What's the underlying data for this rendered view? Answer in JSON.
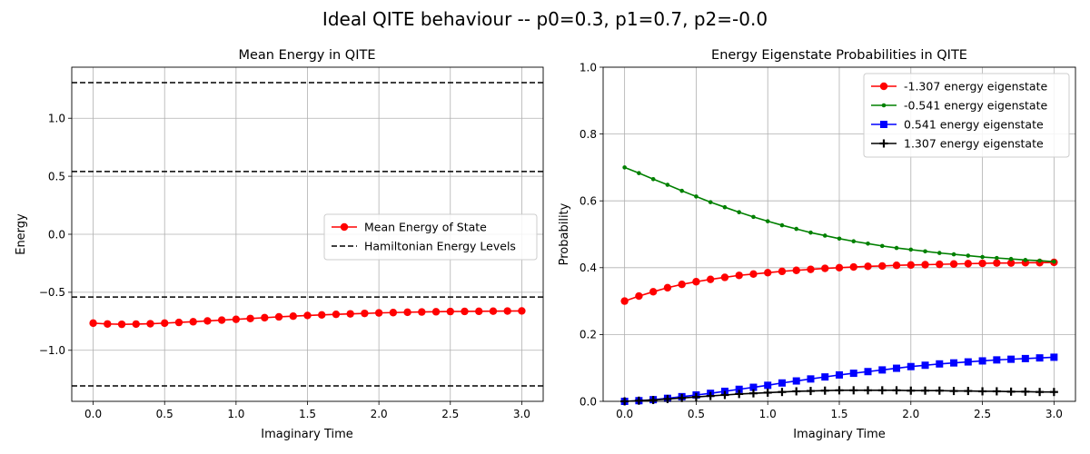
{
  "figure_title": "Ideal QITE behaviour -- p0=0.3, p1=0.7, p2=-0.0",
  "chart_data": [
    {
      "type": "line",
      "title": "Mean Energy in QITE",
      "xlabel": "Imaginary Time",
      "ylabel": "Energy",
      "xlim": [
        -0.15,
        3.15
      ],
      "ylim": [
        -1.44,
        1.44
      ],
      "xticks": [
        "0.0",
        "0.5",
        "1.0",
        "1.5",
        "2.0",
        "2.5",
        "3.0"
      ],
      "yticks": [
        "−1.0",
        "−0.5",
        "0.0",
        "0.5",
        "1.0"
      ],
      "grid": true,
      "legend_position": "center-right",
      "x": [
        0.0,
        0.1,
        0.2,
        0.3,
        0.4,
        0.5,
        0.6,
        0.7,
        0.8,
        0.9,
        1.0,
        1.1,
        1.2,
        1.3,
        1.4,
        1.5,
        1.6,
        1.7,
        1.8,
        1.9,
        2.0,
        2.1,
        2.2,
        2.3,
        2.4,
        2.5,
        2.6,
        2.7,
        2.8,
        2.9,
        3.0
      ],
      "series": [
        {
          "name": "Mean Energy of State",
          "color": "#ff0000",
          "marker": "circle",
          "values": [
            -0.766,
            -0.773,
            -0.776,
            -0.774,
            -0.771,
            -0.766,
            -0.76,
            -0.754,
            -0.747,
            -0.74,
            -0.733,
            -0.726,
            -0.719,
            -0.712,
            -0.706,
            -0.7,
            -0.695,
            -0.69,
            -0.686,
            -0.682,
            -0.678,
            -0.675,
            -0.672,
            -0.67,
            -0.668,
            -0.666,
            -0.665,
            -0.664,
            -0.663,
            -0.662,
            -0.661
          ]
        }
      ],
      "hlines": {
        "name": "Hamiltonian Energy Levels",
        "color": "#000000",
        "style": "dashed",
        "values": [
          -1.307,
          -0.541,
          0.541,
          1.307
        ]
      }
    },
    {
      "type": "line",
      "title": "Energy Eigenstate Probabilities in QITE",
      "xlabel": "Imaginary Time",
      "ylabel": "Probability",
      "xlim": [
        -0.15,
        3.15
      ],
      "ylim": [
        0.0,
        1.0
      ],
      "xticks": [
        "0.0",
        "0.5",
        "1.0",
        "1.5",
        "2.0",
        "2.5",
        "3.0"
      ],
      "yticks": [
        "0.0",
        "0.2",
        "0.4",
        "0.6",
        "0.8",
        "1.0"
      ],
      "grid": true,
      "legend_position": "top-right",
      "x": [
        0.0,
        0.1,
        0.2,
        0.3,
        0.4,
        0.5,
        0.6,
        0.7,
        0.8,
        0.9,
        1.0,
        1.1,
        1.2,
        1.3,
        1.4,
        1.5,
        1.6,
        1.7,
        1.8,
        1.9,
        2.0,
        2.1,
        2.2,
        2.3,
        2.4,
        2.5,
        2.6,
        2.7,
        2.8,
        2.9,
        3.0
      ],
      "series": [
        {
          "name": "-1.307 energy eigenstate",
          "color": "#ff0000",
          "marker": "circle",
          "values": [
            0.3,
            0.315,
            0.328,
            0.34,
            0.35,
            0.358,
            0.365,
            0.371,
            0.377,
            0.381,
            0.385,
            0.389,
            0.392,
            0.395,
            0.398,
            0.4,
            0.402,
            0.404,
            0.405,
            0.407,
            0.408,
            0.409,
            0.41,
            0.411,
            0.412,
            0.413,
            0.414,
            0.414,
            0.415,
            0.415,
            0.416
          ]
        },
        {
          "name": "-0.541 energy eigenstate",
          "color": "#008000",
          "marker": "dot",
          "values": [
            0.7,
            0.683,
            0.665,
            0.648,
            0.63,
            0.613,
            0.596,
            0.581,
            0.566,
            0.552,
            0.539,
            0.527,
            0.516,
            0.505,
            0.496,
            0.487,
            0.479,
            0.472,
            0.465,
            0.459,
            0.454,
            0.449,
            0.444,
            0.44,
            0.436,
            0.432,
            0.429,
            0.426,
            0.423,
            0.421,
            0.418
          ]
        },
        {
          "name": "0.541 energy eigenstate",
          "color": "#0000ff",
          "marker": "square",
          "values": [
            0.0,
            0.002,
            0.005,
            0.009,
            0.014,
            0.019,
            0.024,
            0.03,
            0.036,
            0.042,
            0.048,
            0.055,
            0.061,
            0.067,
            0.073,
            0.079,
            0.084,
            0.089,
            0.094,
            0.099,
            0.104,
            0.108,
            0.112,
            0.115,
            0.118,
            0.121,
            0.124,
            0.126,
            0.128,
            0.13,
            0.132
          ]
        },
        {
          "name": "1.307 energy eigenstate",
          "color": "#000000",
          "marker": "plus",
          "values": [
            0.0,
            0.002,
            0.004,
            0.007,
            0.01,
            0.013,
            0.016,
            0.019,
            0.022,
            0.024,
            0.026,
            0.028,
            0.03,
            0.031,
            0.032,
            0.033,
            0.033,
            0.033,
            0.033,
            0.033,
            0.032,
            0.032,
            0.032,
            0.031,
            0.031,
            0.03,
            0.03,
            0.029,
            0.029,
            0.028,
            0.028
          ]
        }
      ]
    }
  ]
}
